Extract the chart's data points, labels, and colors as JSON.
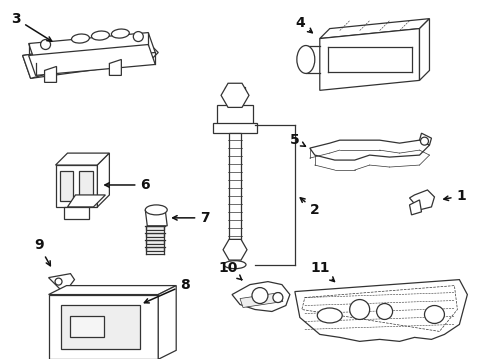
{
  "background_color": "#ffffff",
  "line_color": "#333333",
  "label_color": "#111111",
  "lw": 0.9,
  "figsize": [
    4.9,
    3.6
  ],
  "dpi": 100
}
